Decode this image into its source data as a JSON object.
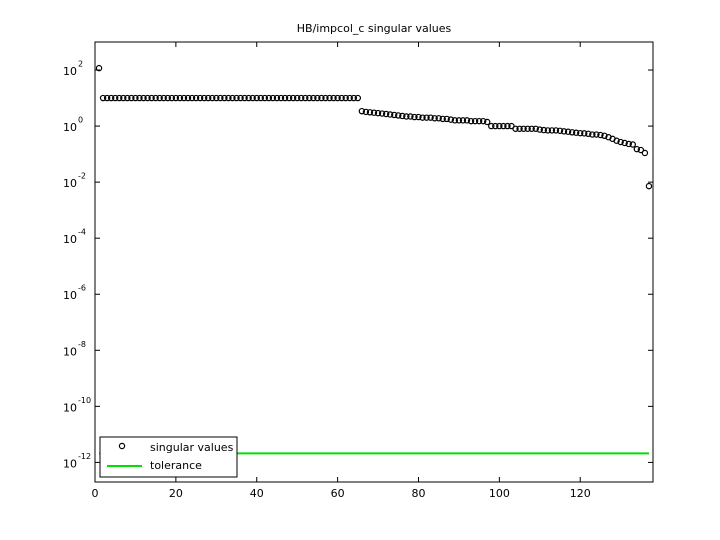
{
  "chart_data": {
    "type": "scatter",
    "title": "HB/impcol_c singular values",
    "xlim": [
      0,
      138
    ],
    "xticks": [
      0,
      20,
      40,
      60,
      80,
      100,
      120
    ],
    "ylim": [
      2e-13,
      1000
    ],
    "log_y": true,
    "yticks": [
      {
        "value": 100,
        "label": "10",
        "exponent": "2"
      },
      {
        "value": 1,
        "label": "10",
        "exponent": "0"
      },
      {
        "value": 0.01,
        "label": "10",
        "exponent": "-2"
      },
      {
        "value": 0.0001,
        "label": "10",
        "exponent": "-4"
      },
      {
        "value": 1e-06,
        "label": "10",
        "exponent": "-6"
      },
      {
        "value": 1e-08,
        "label": "10",
        "exponent": "-8"
      },
      {
        "value": 1e-10,
        "label": "10",
        "exponent": "-10"
      },
      {
        "value": 1e-12,
        "label": "10",
        "exponent": "-12"
      }
    ],
    "legend": "lower left",
    "series": [
      {
        "name": "singular values",
        "color": "#000000",
        "marker": "circle",
        "x": [
          1,
          2,
          3,
          4,
          5,
          6,
          7,
          8,
          9,
          10,
          11,
          12,
          13,
          14,
          15,
          16,
          17,
          18,
          19,
          20,
          21,
          22,
          23,
          24,
          25,
          26,
          27,
          28,
          29,
          30,
          31,
          32,
          33,
          34,
          35,
          36,
          37,
          38,
          39,
          40,
          41,
          42,
          43,
          44,
          45,
          46,
          47,
          48,
          49,
          50,
          51,
          52,
          53,
          54,
          55,
          56,
          57,
          58,
          59,
          60,
          61,
          62,
          63,
          64,
          65,
          66,
          67,
          68,
          69,
          70,
          71,
          72,
          73,
          74,
          75,
          76,
          77,
          78,
          79,
          80,
          81,
          82,
          83,
          84,
          85,
          86,
          87,
          88,
          89,
          90,
          91,
          92,
          93,
          94,
          95,
          96,
          97,
          98,
          99,
          100,
          101,
          102,
          103,
          104,
          105,
          106,
          107,
          108,
          109,
          110,
          111,
          112,
          113,
          114,
          115,
          116,
          117,
          118,
          119,
          120,
          121,
          122,
          123,
          124,
          125,
          126,
          127,
          128,
          129,
          130,
          131,
          132,
          133,
          134,
          135,
          136,
          137
        ],
        "values": [
          117,
          10,
          10,
          10,
          10,
          10,
          10,
          10,
          10,
          10,
          10,
          10,
          10,
          10,
          10,
          10,
          10,
          10,
          10,
          10,
          10,
          10,
          10,
          10,
          10,
          10,
          10,
          10,
          10,
          10,
          10,
          10,
          10,
          10,
          10,
          10,
          10,
          10,
          10,
          10,
          10,
          10,
          10,
          10,
          10,
          10,
          10,
          10,
          10,
          10,
          10,
          10,
          10,
          10,
          10,
          10,
          10,
          10,
          10,
          10,
          10,
          10,
          10,
          10,
          10,
          3.4,
          3.2,
          3.1,
          3.0,
          2.9,
          2.8,
          2.7,
          2.6,
          2.5,
          2.4,
          2.3,
          2.2,
          2.2,
          2.1,
          2.1,
          2.0,
          2.0,
          2.0,
          1.9,
          1.9,
          1.8,
          1.8,
          1.7,
          1.6,
          1.6,
          1.6,
          1.6,
          1.5,
          1.5,
          1.5,
          1.5,
          1.4,
          1.0,
          1.0,
          1.0,
          1.0,
          1.0,
          1.0,
          0.8,
          0.8,
          0.8,
          0.8,
          0.8,
          0.8,
          0.75,
          0.72,
          0.7,
          0.7,
          0.7,
          0.68,
          0.65,
          0.63,
          0.6,
          0.58,
          0.56,
          0.55,
          0.53,
          0.5,
          0.5,
          0.48,
          0.45,
          0.4,
          0.35,
          0.3,
          0.27,
          0.25,
          0.23,
          0.22,
          0.15,
          0.14,
          0.11,
          0.0072
        ]
      },
      {
        "name": "tolerance",
        "color": "#00e000",
        "marker": "line",
        "x": [
          1,
          137
        ],
        "values": [
          2.1e-12,
          2.1e-12
        ]
      }
    ]
  }
}
